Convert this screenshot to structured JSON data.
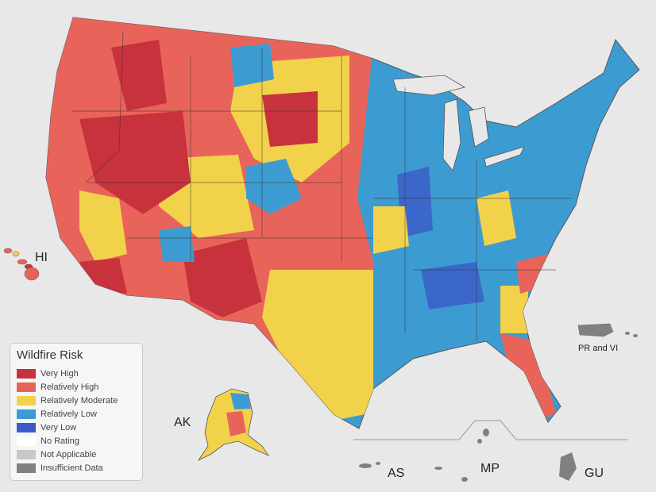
{
  "legend": {
    "title": "Wildfire Risk",
    "items": [
      {
        "label": "Very High",
        "color": "#c8323c"
      },
      {
        "label": "Relatively High",
        "color": "#e8645a"
      },
      {
        "label": "Relatively Moderate",
        "color": "#f2d24a"
      },
      {
        "label": "Relatively Low",
        "color": "#3c9cd2"
      },
      {
        "label": "Very Low",
        "color": "#3c5ac8"
      },
      {
        "label": "No Rating",
        "color": "#ffffff"
      },
      {
        "label": "Not Applicable",
        "color": "#c8c8c8"
      },
      {
        "label": "Insufficient Data",
        "color": "#808080"
      }
    ]
  },
  "territories": {
    "hi": "HI",
    "ak": "AK",
    "pr_vi": "PR and VI",
    "as": "AS",
    "mp": "MP",
    "gu": "GU"
  }
}
